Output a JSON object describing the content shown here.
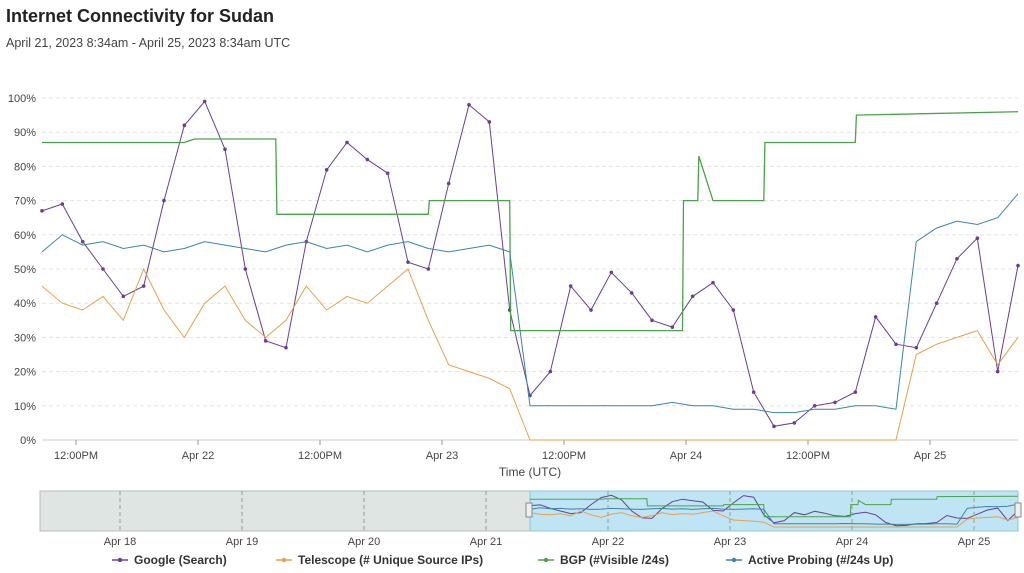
{
  "chart_data": {
    "type": "line",
    "title": "Internet Connectivity for Sudan",
    "subtitle": "April 21, 2023 8:34am - April 25, 2023 8:34am UTC",
    "xlabel": "Time (UTC)",
    "ylabel": "",
    "ylim": [
      0,
      100
    ],
    "x_ticks": [
      "12:00PM",
      "Apr 22",
      "12:00PM",
      "Apr 23",
      "12:00PM",
      "Apr 24",
      "12:00PM",
      "Apr 25"
    ],
    "y_ticks": [
      "0%",
      "10%",
      "20%",
      "30%",
      "40%",
      "50%",
      "60%",
      "70%",
      "80%",
      "90%",
      "100%"
    ],
    "navigator_ticks": [
      "Apr 18",
      "Apr 19",
      "Apr 20",
      "Apr 21",
      "Apr 22",
      "Apr 23",
      "Apr 24",
      "Apr 25"
    ],
    "grid": true,
    "legend_position": "bottom",
    "series": [
      {
        "name": "Google (Search)",
        "color": "#6a3d9a",
        "x": [
          0,
          2,
          4,
          6,
          8,
          10,
          12,
          14,
          16,
          18,
          20,
          22,
          24,
          26,
          28,
          30,
          32,
          34,
          36,
          38,
          40,
          42,
          44,
          46,
          48,
          50,
          52,
          54,
          56,
          58,
          60,
          62,
          64,
          66,
          68,
          70,
          72,
          74,
          76,
          78,
          80,
          82,
          84,
          86,
          88,
          90,
          92,
          94,
          96
        ],
        "values": [
          67,
          69,
          58,
          50,
          42,
          45,
          70,
          92,
          99,
          85,
          50,
          29,
          27,
          58,
          79,
          87,
          82,
          78,
          52,
          50,
          75,
          98,
          93,
          38,
          13,
          20,
          45,
          38,
          49,
          43,
          35,
          33,
          42,
          46,
          38,
          14,
          4,
          5,
          10,
          11,
          14,
          36,
          28,
          27,
          40,
          53,
          59,
          20,
          51
        ]
      },
      {
        "name": "Telescope (# Unique Source IPs)",
        "color": "#e8a04a",
        "x": [
          0,
          2,
          4,
          6,
          8,
          10,
          12,
          14,
          16,
          18,
          20,
          22,
          24,
          26,
          28,
          30,
          32,
          34,
          36,
          38,
          40,
          42,
          44,
          46,
          48,
          50,
          52,
          54,
          56,
          58,
          60,
          62,
          64,
          66,
          68,
          70,
          72,
          74,
          76,
          78,
          80,
          82,
          84,
          86,
          88,
          90,
          92,
          94,
          96
        ],
        "values": [
          45,
          40,
          38,
          42,
          35,
          50,
          38,
          30,
          40,
          45,
          35,
          30,
          35,
          45,
          38,
          42,
          40,
          45,
          50,
          35,
          22,
          20,
          18,
          15,
          0,
          0,
          0,
          0,
          0,
          0,
          0,
          0,
          0,
          0,
          0,
          0,
          0,
          0,
          0,
          0,
          0,
          0,
          0,
          25,
          28,
          30,
          32,
          22,
          30
        ]
      },
      {
        "name": "BGP (#Visible /24s)",
        "color": "#4aa34a",
        "x": [
          0,
          14,
          15,
          23,
          23.1,
          38,
          38.1,
          46,
          46.1,
          63,
          63.1,
          64.5,
          64.6,
          66,
          66.1,
          71,
          71.1,
          72,
          72.1,
          80,
          80.1,
          96
        ],
        "values": [
          87,
          87,
          88,
          88,
          66,
          66,
          70,
          70,
          32,
          32,
          70,
          70,
          83,
          70,
          70,
          70,
          87,
          87,
          87,
          87,
          95,
          96
        ]
      },
      {
        "name": "Active Probing (#/24s Up)",
        "color": "#3a86a8",
        "x": [
          0,
          2,
          4,
          6,
          8,
          10,
          12,
          14,
          16,
          18,
          20,
          22,
          24,
          26,
          28,
          30,
          32,
          34,
          36,
          38,
          40,
          42,
          44,
          46,
          48,
          50,
          52,
          54,
          56,
          58,
          60,
          62,
          64,
          66,
          68,
          70,
          72,
          74,
          76,
          78,
          80,
          82,
          84,
          86,
          88,
          90,
          92,
          94,
          96
        ],
        "values": [
          55,
          60,
          57,
          58,
          56,
          57,
          55,
          56,
          58,
          57,
          56,
          55,
          57,
          58,
          56,
          57,
          55,
          57,
          58,
          56,
          55,
          56,
          57,
          55,
          10,
          10,
          10,
          10,
          10,
          10,
          10,
          11,
          10,
          10,
          9,
          9,
          8,
          8,
          9,
          9,
          10,
          10,
          9,
          58,
          62,
          64,
          63,
          65,
          72
        ]
      }
    ]
  }
}
